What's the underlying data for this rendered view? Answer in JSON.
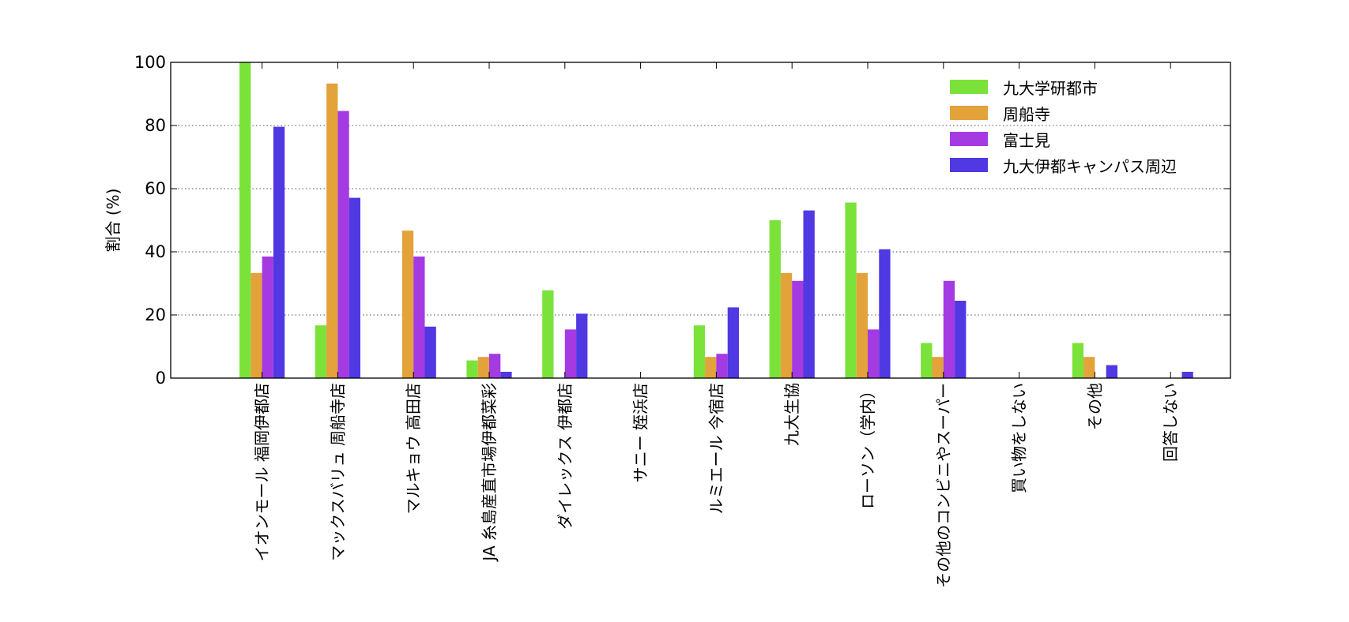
{
  "chart_data": {
    "type": "bar",
    "categories": [
      "イオンモール 福岡伊都店",
      "マックスバリュ 周船寺店",
      "マルキョウ 高田店",
      "JA 糸島産直市場伊都菜彩",
      "ダイレックス 伊都店",
      "サニー 姪浜店",
      "ルミエール 今宿店",
      "九大生協",
      "ローソン（学内）",
      "その他のコンビニやスーパー",
      "買い物をしない",
      "その他",
      "回答しない"
    ],
    "series": [
      {
        "name": "九大学研都市",
        "color": "#7be23a",
        "values": [
          100,
          16.7,
          0,
          5.6,
          27.8,
          0,
          16.7,
          50,
          55.6,
          11.1,
          0,
          11.1,
          0
        ]
      },
      {
        "name": "周船寺",
        "color": "#e3a23a",
        "values": [
          33.3,
          93.3,
          46.7,
          6.7,
          0,
          0,
          6.7,
          33.3,
          33.3,
          6.7,
          0,
          6.7,
          0
        ]
      },
      {
        "name": "富士見",
        "color": "#a43ae2",
        "values": [
          38.5,
          84.6,
          38.5,
          7.7,
          15.4,
          0,
          7.7,
          30.8,
          15.4,
          30.8,
          0,
          0,
          0
        ]
      },
      {
        "name": "九大伊都キャンパス周辺",
        "color": "#5038e2",
        "values": [
          79.6,
          57.1,
          16.3,
          2.0,
          20.4,
          0,
          22.4,
          53.1,
          40.8,
          24.5,
          0,
          4.1,
          2.0
        ]
      }
    ],
    "xlabel": "",
    "ylabel": "割合 (%)",
    "ylim": [
      0,
      100
    ],
    "yticks": [
      0,
      20,
      40,
      60,
      80,
      100
    ],
    "grid": "horizontal-dotted",
    "legend_position": "top-right"
  }
}
